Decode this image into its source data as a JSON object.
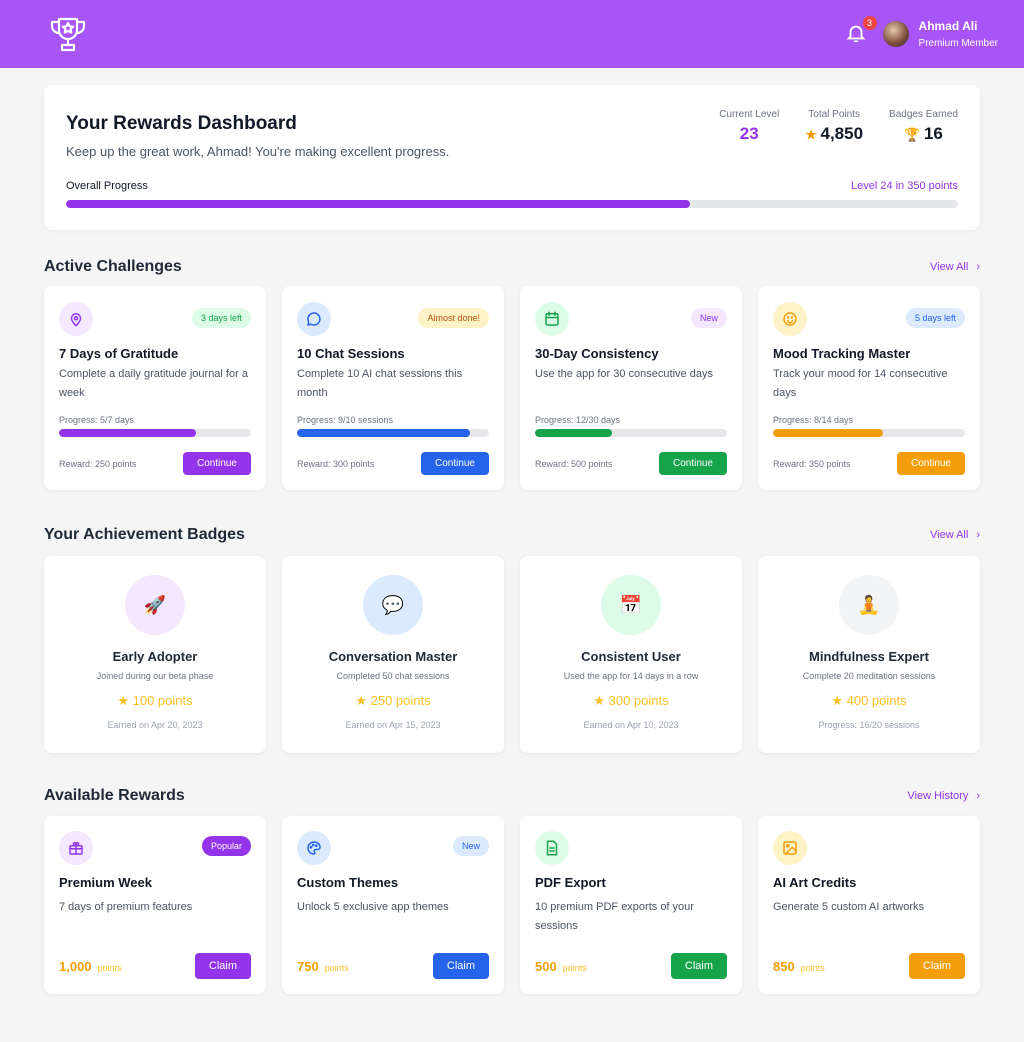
{
  "header": {
    "notifications": "3",
    "user_name": "Ahmad Ali",
    "user_role": "Premium Member"
  },
  "dashboard": {
    "title": "Your Rewards Dashboard",
    "subtitle": "Keep up the great work, Ahmad! You're making excellent progress.",
    "stats": [
      {
        "label": "Current Level",
        "value": "23"
      },
      {
        "label": "Total Points",
        "value": "4,850",
        "icon": "star"
      },
      {
        "label": "Badges Earned",
        "value": "16",
        "icon": "trophy"
      }
    ],
    "progress_label": "Overall Progress",
    "next_level": "Level 24 in 350 points",
    "progress": 0.7
  },
  "challenges": {
    "title": "Active Challenges",
    "view_all": "View All",
    "items": [
      {
        "title": "7 Days of Gratitude",
        "desc": "Complete a daily gratitude journal for a week",
        "badge": "3 days left",
        "progress_text": "Progress: 5/7 days",
        "progress": 0.714,
        "reward": "Reward: 250 points",
        "button": "Continue",
        "icon": "location-pin",
        "color": "#9333ea"
      },
      {
        "title": "10 Chat Sessions",
        "desc": "Complete 10 AI chat sessions this month",
        "badge": "Almost done!",
        "progress_text": "Progress: 9/10 sessions",
        "progress": 0.9,
        "reward": "Reward: 300 points",
        "button": "Continue",
        "icon": "chat-bubble",
        "color": "#2563eb"
      },
      {
        "title": "30-Day Consistency",
        "desc": "Use the app for 30 consecutive days",
        "badge": "New",
        "progress_text": "Progress: 12/30 days",
        "progress": 0.4,
        "reward": "Reward: 500 points",
        "button": "Continue",
        "icon": "calendar",
        "color": "#16a34a"
      },
      {
        "title": "Mood Tracking Master",
        "desc": "Track your mood for 14 consecutive days",
        "badge": "5 days left",
        "progress_text": "Progress: 8/14 days",
        "progress": 0.571,
        "reward": "Reward: 350 points",
        "button": "Continue",
        "icon": "smiley",
        "color": "#f59e0b"
      }
    ]
  },
  "badges": {
    "title": "Your Achievement Badges",
    "view_all": "View All",
    "items": [
      {
        "title": "Early Adopter",
        "desc": "Joined during our beta phase",
        "points": "★ 100 points",
        "status": "Earned on Apr 20, 2023",
        "emoji": "🚀",
        "icon": "rocket"
      },
      {
        "title": "Conversation Master",
        "desc": "Completed 50 chat sessions",
        "points": "★ 250 points",
        "status": "Earned on Apr 15, 2023",
        "emoji": "💬",
        "icon": "speech-bubble"
      },
      {
        "title": "Consistent User",
        "desc": "Used the app for 14 days in a row",
        "points": "★ 300 points",
        "status": "Earned on Apr 10, 2023",
        "emoji": "📅",
        "icon": "calendar"
      },
      {
        "title": "Mindfulness Expert",
        "desc": "Complete 20 meditation sessions",
        "points": "★ 400 points",
        "status": "Progress: 16/20 sessions",
        "emoji": "🧘",
        "icon": "meditation"
      }
    ]
  },
  "rewards": {
    "title": "Available Rewards",
    "view_all": "View History",
    "items": [
      {
        "title": "Premium Week",
        "desc": "7 days of premium features",
        "cost": "1,000",
        "unit": "points",
        "badge": "Popular",
        "button": "Claim",
        "icon": "gift",
        "color": "#9333ea"
      },
      {
        "title": "Custom Themes",
        "desc": "Unlock 5 exclusive app themes",
        "cost": "750",
        "unit": "points",
        "badge": "New",
        "button": "Claim",
        "icon": "palette",
        "color": "#2563eb"
      },
      {
        "title": "PDF Export",
        "desc": "10 premium PDF exports of your sessions",
        "cost": "500",
        "unit": "points",
        "button": "Claim",
        "icon": "document",
        "color": "#16a34a"
      },
      {
        "title": "AI Art Credits",
        "desc": "Generate 5 custom AI artworks",
        "cost": "850",
        "unit": "points",
        "button": "Claim",
        "icon": "image",
        "color": "#f59e0b"
      }
    ]
  }
}
